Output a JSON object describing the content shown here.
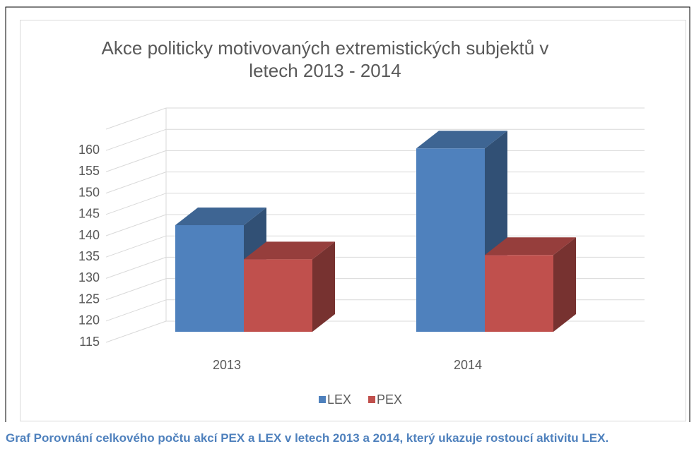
{
  "chart_data": {
    "type": "bar3d",
    "title": [
      "Akce politicky motivovaných extremistických subjektů v",
      "letech 2013 - 2014"
    ],
    "categories": [
      "2013",
      "2014"
    ],
    "series": [
      {
        "name": "LEX",
        "color": "#4f81bd",
        "values": [
          140,
          158
        ]
      },
      {
        "name": "PEX",
        "color": "#c0504d",
        "values": [
          132,
          133
        ]
      }
    ],
    "ylim": [
      115,
      165
    ],
    "yticks": [
      115,
      120,
      125,
      130,
      135,
      140,
      145,
      150,
      155,
      160
    ],
    "grid": true,
    "legend": "bottom"
  },
  "caption": "Graf  Porovnání celkového počtu akcí PEX a LEX v letech 2013 a 2014, který ukazuje rostoucí aktivitu LEX."
}
